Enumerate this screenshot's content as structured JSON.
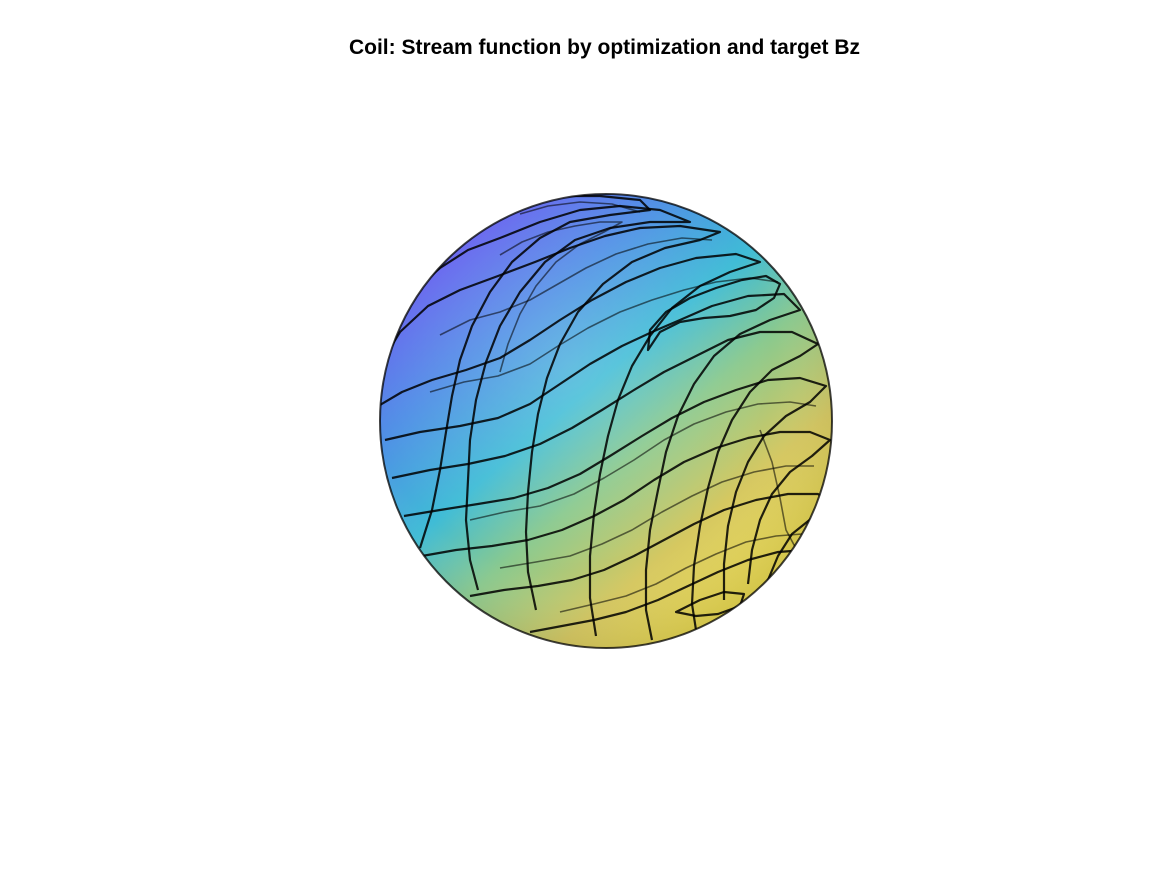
{
  "figure": {
    "title": "Coil: Stream function by optimization and target Bz"
  },
  "colors": {
    "background": "#ffffff",
    "colormap": [
      "#6a5ff0",
      "#4f8fe6",
      "#3fbcd6",
      "#8ac98e",
      "#d6c860",
      "#f5e44f"
    ],
    "contour_lines": "#000000"
  }
}
